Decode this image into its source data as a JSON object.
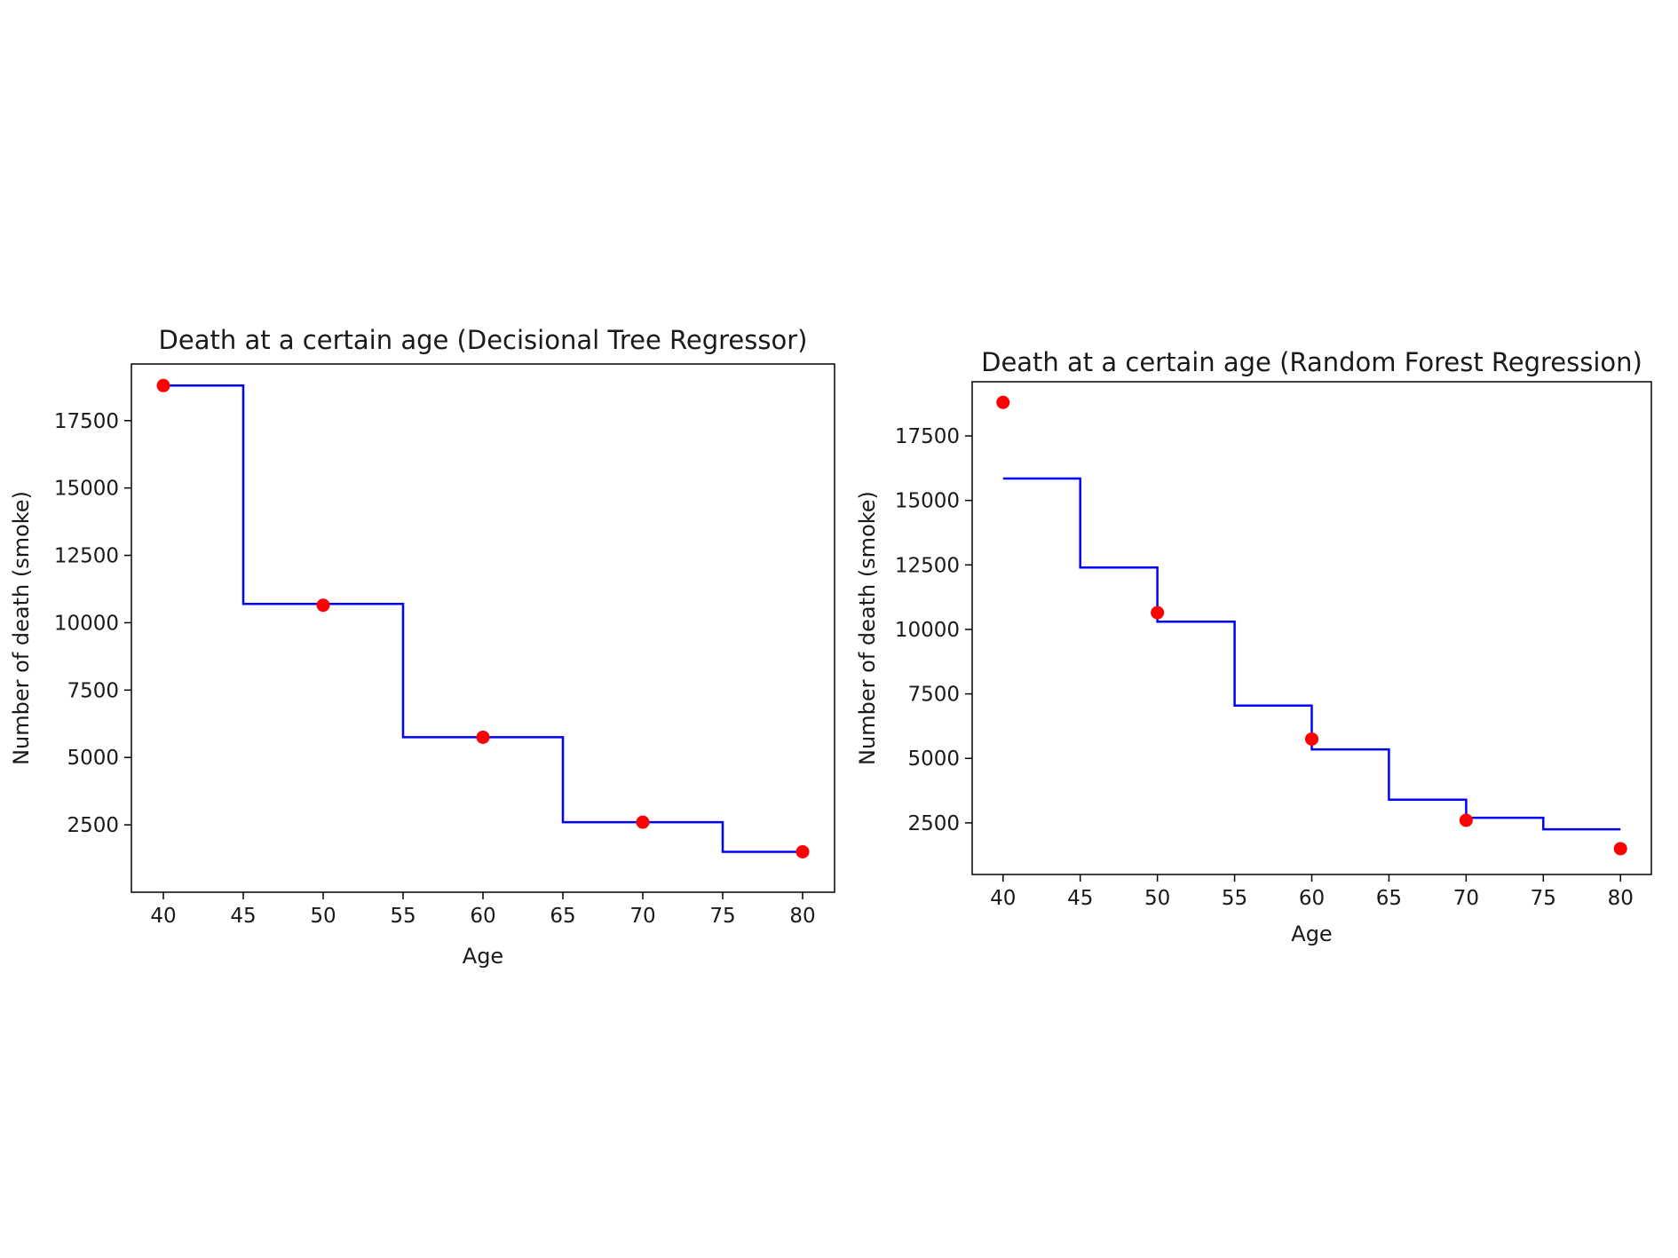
{
  "colors": {
    "line": "#0000ff",
    "points": "#ff0000",
    "axis": "#000000"
  },
  "chart_data": [
    {
      "type": "line",
      "title": "Death at a certain age (Decisional Tree Regressor)",
      "xlabel": "Age",
      "ylabel": "Number of death (smoke)",
      "xlim": [
        38,
        82
      ],
      "ylim": [
        0,
        19600
      ],
      "xticks": [
        40,
        45,
        50,
        55,
        60,
        65,
        70,
        75,
        80
      ],
      "yticks": [
        2500,
        5000,
        7500,
        10000,
        12500,
        15000,
        17500
      ],
      "grid": false,
      "series": [
        {
          "kind": "step",
          "x": [
            40,
            45,
            45,
            55,
            55,
            65,
            65,
            75,
            75,
            80
          ],
          "y": [
            18800,
            18800,
            10700,
            10700,
            5750,
            5750,
            2600,
            2600,
            1500,
            1500
          ]
        },
        {
          "kind": "scatter",
          "x": [
            40,
            50,
            60,
            70,
            80
          ],
          "y": [
            18800,
            10650,
            5750,
            2600,
            1500
          ]
        }
      ]
    },
    {
      "type": "line",
      "title": "Death at a certain age (Random Forest Regression)",
      "xlabel": "Age",
      "ylabel": "Number of death (smoke)",
      "xlim": [
        38,
        82
      ],
      "ylim": [
        500,
        19600
      ],
      "xticks": [
        40,
        45,
        50,
        55,
        60,
        65,
        70,
        75,
        80
      ],
      "yticks": [
        2500,
        5000,
        7500,
        10000,
        12500,
        15000,
        17500
      ],
      "grid": false,
      "series": [
        {
          "kind": "step",
          "x": [
            40,
            45,
            45,
            50,
            50,
            55,
            55,
            60,
            60,
            65,
            65,
            70,
            70,
            75,
            75,
            80
          ],
          "y": [
            15850,
            15850,
            12400,
            12400,
            10300,
            10300,
            7050,
            7050,
            5350,
            5350,
            3400,
            3400,
            2700,
            2700,
            2250,
            2250
          ]
        },
        {
          "kind": "scatter",
          "x": [
            40,
            50,
            60,
            70,
            80
          ],
          "y": [
            18800,
            10650,
            5750,
            2600,
            1500
          ]
        }
      ]
    }
  ]
}
